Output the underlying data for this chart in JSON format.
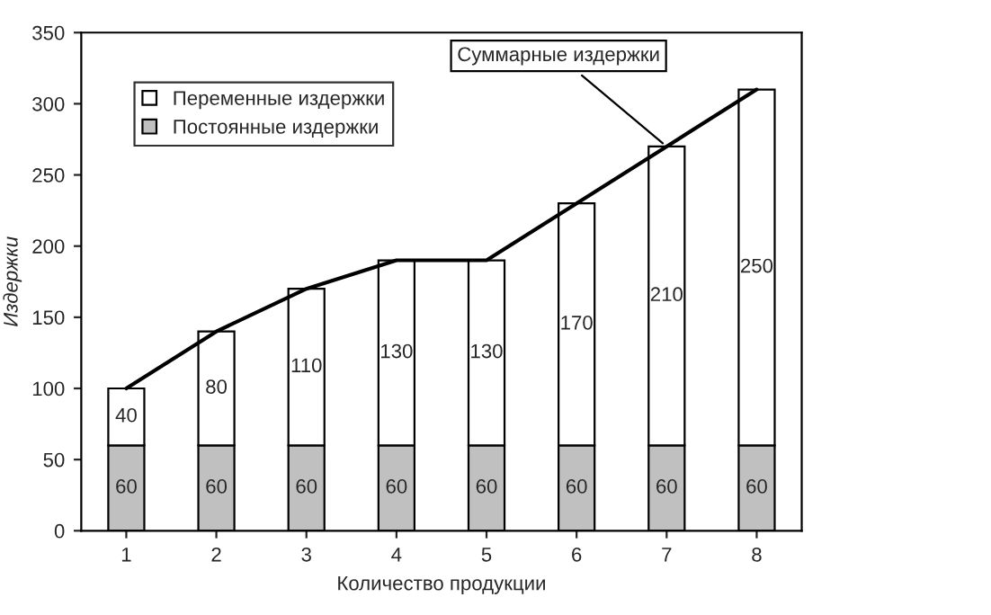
{
  "chart_data": {
    "type": "bar",
    "stacked": true,
    "xlabel": "Количество продукции",
    "ylabel": "Издержки",
    "categories": [
      "1",
      "2",
      "3",
      "4",
      "5",
      "6",
      "7",
      "8"
    ],
    "series": [
      {
        "name": "Постоянные издержки",
        "color": "#c0c0c0",
        "values": [
          60,
          60,
          60,
          60,
          60,
          60,
          60,
          60
        ],
        "value_labels": [
          "60",
          "60",
          "60",
          "60",
          "60",
          "60",
          "60",
          "60"
        ]
      },
      {
        "name": "Переменные издержки",
        "color": "#ffffff",
        "values": [
          40,
          80,
          110,
          130,
          130,
          170,
          210,
          250
        ],
        "value_labels": [
          "40",
          "80",
          "110",
          "130",
          "130",
          "170",
          "210",
          "250"
        ]
      },
      {
        "type": "line",
        "color": "#000000",
        "values": [
          100,
          140,
          170,
          190,
          190,
          230,
          270,
          310
        ]
      }
    ],
    "ylim": [
      0,
      350
    ],
    "yticks": [
      0,
      50,
      100,
      150,
      200,
      250,
      300,
      350
    ],
    "grid": false,
    "legend": "top left",
    "annotations": [
      {
        "text": "Суммарные издержки",
        "x": "7",
        "y": 270
      }
    ]
  }
}
